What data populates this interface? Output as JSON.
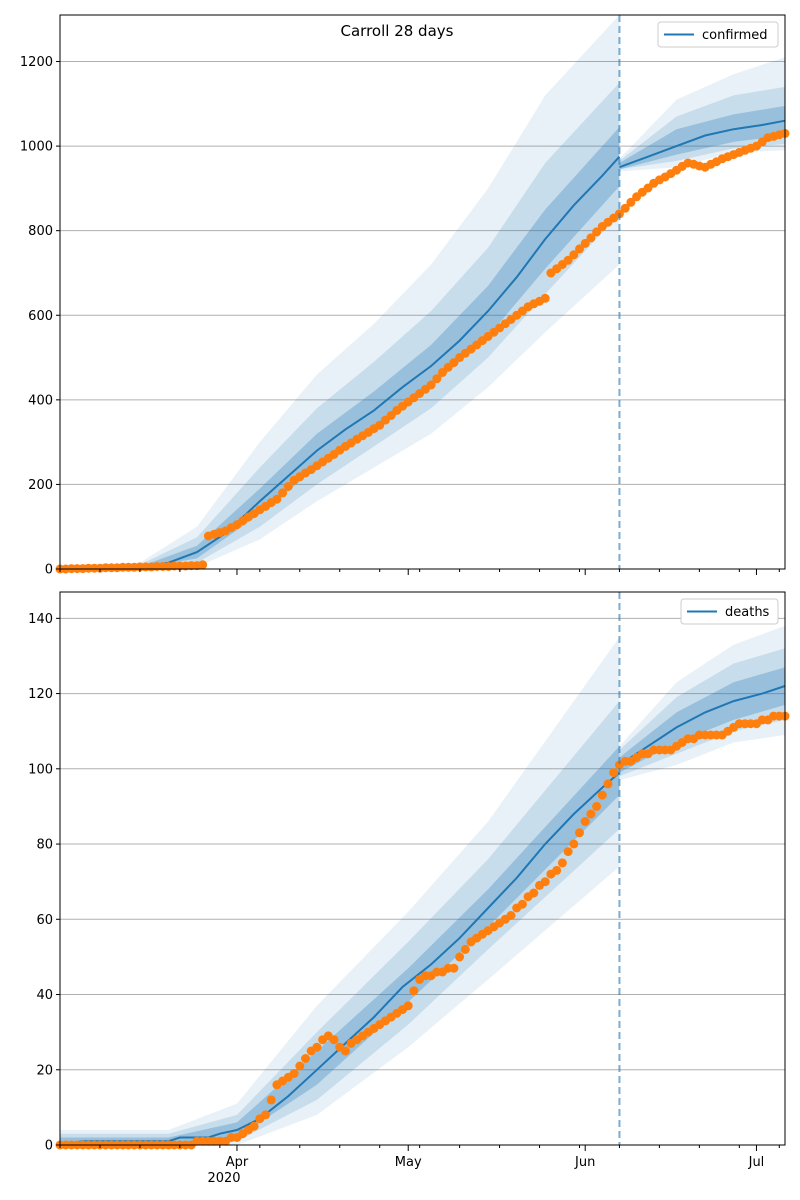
{
  "figure": {
    "title": "Carroll 28 days"
  },
  "colors": {
    "model": "#1f77b4",
    "observed": "#ff7f0e",
    "band": "#1f77b4",
    "grid": "#b0b0b0"
  },
  "chart_data": [
    {
      "type": "line",
      "title": "Carroll 28 days",
      "legend": {
        "label": "confirmed",
        "position": "top-right"
      },
      "x_start": "2020-03-01",
      "x_end": "2020-07-06",
      "forecast_date": "2020-06-07",
      "ylim": [
        0,
        1310
      ],
      "yticks": [
        0,
        200,
        400,
        600,
        800,
        1000,
        1200
      ],
      "grid": "y",
      "model_fit": [
        [
          "2020-03-01",
          0
        ],
        [
          "2020-03-10",
          1
        ],
        [
          "2020-03-15",
          4
        ],
        [
          "2020-03-20",
          15
        ],
        [
          "2020-03-25",
          40
        ],
        [
          "2020-03-30",
          85
        ],
        [
          "2020-04-05",
          160
        ],
        [
          "2020-04-10",
          220
        ],
        [
          "2020-04-15",
          280
        ],
        [
          "2020-04-20",
          330
        ],
        [
          "2020-04-25",
          375
        ],
        [
          "2020-04-30",
          430
        ],
        [
          "2020-05-05",
          480
        ],
        [
          "2020-05-10",
          540
        ],
        [
          "2020-05-15",
          610
        ],
        [
          "2020-05-20",
          690
        ],
        [
          "2020-05-25",
          780
        ],
        [
          "2020-05-30",
          860
        ],
        [
          "2020-06-04",
          930
        ],
        [
          "2020-06-07",
          975
        ]
      ],
      "model_forecast": [
        [
          "2020-06-07",
          950
        ],
        [
          "2020-06-12",
          975
        ],
        [
          "2020-06-17",
          1000
        ],
        [
          "2020-06-22",
          1025
        ],
        [
          "2020-06-27",
          1040
        ],
        [
          "2020-07-02",
          1050
        ],
        [
          "2020-07-06",
          1060
        ]
      ],
      "bands_fit": [
        {
          "x": [
            "2020-03-01",
            "2020-03-15",
            "2020-03-25",
            "2020-04-05",
            "2020-04-15",
            "2020-04-25",
            "2020-05-05",
            "2020-05-15",
            "2020-05-25",
            "2020-06-07"
          ],
          "low": [
            0,
            2,
            25,
            130,
            240,
            330,
            430,
            550,
            710,
            905
          ],
          "high": [
            0,
            6,
            55,
            190,
            320,
            420,
            530,
            670,
            850,
            1045
          ]
        },
        {
          "x": [
            "2020-03-01",
            "2020-03-15",
            "2020-03-25",
            "2020-04-05",
            "2020-04-15",
            "2020-04-25",
            "2020-05-05",
            "2020-05-15",
            "2020-05-25",
            "2020-06-07"
          ],
          "low": [
            0,
            1,
            15,
            100,
            200,
            290,
            380,
            500,
            650,
            840
          ],
          "high": [
            0,
            10,
            75,
            240,
            380,
            490,
            610,
            760,
            960,
            1150
          ]
        },
        {
          "x": [
            "2020-03-01",
            "2020-03-15",
            "2020-03-25",
            "2020-04-05",
            "2020-04-15",
            "2020-04-25",
            "2020-05-05",
            "2020-05-15",
            "2020-05-25",
            "2020-06-07"
          ],
          "low": [
            0,
            0,
            5,
            70,
            160,
            240,
            320,
            430,
            560,
            720
          ],
          "high": [
            0,
            15,
            100,
            300,
            460,
            580,
            720,
            900,
            1120,
            1310
          ]
        }
      ],
      "bands_forecast": [
        {
          "x": [
            "2020-06-07",
            "2020-06-17",
            "2020-06-27",
            "2020-07-06"
          ],
          "low": [
            945,
            980,
            1010,
            1025
          ],
          "high": [
            960,
            1040,
            1075,
            1095
          ]
        },
        {
          "x": [
            "2020-06-07",
            "2020-06-17",
            "2020-06-27",
            "2020-07-06"
          ],
          "low": [
            945,
            965,
            995,
            1005
          ],
          "high": [
            965,
            1070,
            1120,
            1140
          ]
        },
        {
          "x": [
            "2020-06-07",
            "2020-06-17",
            "2020-06-27",
            "2020-07-06"
          ],
          "low": [
            940,
            950,
            985,
            990
          ],
          "high": [
            970,
            1110,
            1170,
            1210
          ]
        }
      ],
      "observed": [
        [
          "2020-03-01",
          0
        ],
        [
          "2020-03-25",
          8
        ],
        [
          "2020-03-26",
          10
        ],
        [
          "2020-03-27",
          78
        ],
        [
          "2020-03-30",
          90
        ],
        [
          "2020-04-01",
          105
        ],
        [
          "2020-04-05",
          140
        ],
        [
          "2020-04-08",
          165
        ],
        [
          "2020-04-11",
          210
        ],
        [
          "2020-04-14",
          235
        ],
        [
          "2020-04-17",
          262
        ],
        [
          "2020-04-20",
          290
        ],
        [
          "2020-04-23",
          315
        ],
        [
          "2020-04-26",
          340
        ],
        [
          "2020-04-29",
          375
        ],
        [
          "2020-05-02",
          405
        ],
        [
          "2020-05-05",
          435
        ],
        [
          "2020-05-07",
          465
        ],
        [
          "2020-05-10",
          500
        ],
        [
          "2020-05-13",
          530
        ],
        [
          "2020-05-16",
          560
        ],
        [
          "2020-05-19",
          590
        ],
        [
          "2020-05-22",
          620
        ],
        [
          "2020-05-25",
          640
        ],
        [
          "2020-05-26",
          700
        ],
        [
          "2020-05-29",
          730
        ],
        [
          "2020-06-01",
          770
        ],
        [
          "2020-06-04",
          810
        ],
        [
          "2020-06-07",
          840
        ],
        [
          "2020-06-10",
          880
        ],
        [
          "2020-06-13",
          912
        ],
        [
          "2020-06-16",
          935
        ],
        [
          "2020-06-19",
          960
        ],
        [
          "2020-06-22",
          950
        ],
        [
          "2020-06-25",
          970
        ],
        [
          "2020-06-28",
          985
        ],
        [
          "2020-07-01",
          1000
        ],
        [
          "2020-07-03",
          1020
        ],
        [
          "2020-07-06",
          1030
        ]
      ]
    },
    {
      "type": "line",
      "legend": {
        "label": "deaths",
        "position": "top-right"
      },
      "x_start": "2020-03-01",
      "x_end": "2020-07-06",
      "forecast_date": "2020-06-07",
      "ylim": [
        0,
        147
      ],
      "yticks": [
        0,
        20,
        40,
        60,
        80,
        100,
        120,
        140
      ],
      "grid": "y",
      "xticks": [
        "Apr",
        "May",
        "Jun",
        "Jul"
      ],
      "xtick_dates": [
        "2020-04-01",
        "2020-05-01",
        "2020-06-01",
        "2020-07-01"
      ],
      "year_label": "2020",
      "model_fit": [
        [
          "2020-03-01",
          0
        ],
        [
          "2020-03-05",
          1
        ],
        [
          "2020-03-20",
          1
        ],
        [
          "2020-03-22",
          2
        ],
        [
          "2020-03-27",
          2
        ],
        [
          "2020-03-29",
          3
        ],
        [
          "2020-04-01",
          4
        ],
        [
          "2020-04-05",
          7
        ],
        [
          "2020-04-10",
          13
        ],
        [
          "2020-04-15",
          20
        ],
        [
          "2020-04-20",
          27
        ],
        [
          "2020-04-25",
          34
        ],
        [
          "2020-04-30",
          42
        ],
        [
          "2020-05-05",
          48
        ],
        [
          "2020-05-10",
          55
        ],
        [
          "2020-05-15",
          63
        ],
        [
          "2020-05-20",
          71
        ],
        [
          "2020-05-25",
          80
        ],
        [
          "2020-05-30",
          88
        ],
        [
          "2020-06-04",
          95
        ],
        [
          "2020-06-07",
          99
        ]
      ],
      "model_forecast": [
        [
          "2020-06-07",
          101
        ],
        [
          "2020-06-12",
          106
        ],
        [
          "2020-06-17",
          111
        ],
        [
          "2020-06-22",
          115
        ],
        [
          "2020-06-27",
          118
        ],
        [
          "2020-07-02",
          120
        ],
        [
          "2020-07-06",
          122
        ]
      ],
      "bands_fit": [
        {
          "x": [
            "2020-03-01",
            "2020-03-20",
            "2020-04-01",
            "2020-04-15",
            "2020-05-01",
            "2020-05-15",
            "2020-06-07"
          ],
          "low": [
            0,
            0,
            2,
            16,
            38,
            58,
            93
          ],
          "high": [
            2,
            2,
            6,
            25,
            47,
            68,
            106
          ]
        },
        {
          "x": [
            "2020-03-01",
            "2020-03-20",
            "2020-04-01",
            "2020-04-15",
            "2020-05-01",
            "2020-05-15",
            "2020-06-07"
          ],
          "low": [
            0,
            0,
            1,
            12,
            32,
            52,
            84
          ],
          "high": [
            3,
            3,
            8,
            30,
            54,
            76,
            118
          ]
        },
        {
          "x": [
            "2020-03-01",
            "2020-03-20",
            "2020-04-01",
            "2020-04-15",
            "2020-05-01",
            "2020-05-15",
            "2020-06-07"
          ],
          "low": [
            0,
            0,
            0,
            8,
            26,
            44,
            74
          ],
          "high": [
            4,
            4,
            11,
            37,
            62,
            86,
            135
          ]
        }
      ],
      "bands_forecast": [
        {
          "x": [
            "2020-06-07",
            "2020-06-17",
            "2020-06-27",
            "2020-07-06"
          ],
          "low": [
            99,
            107,
            113,
            117
          ],
          "high": [
            103,
            115,
            123,
            127
          ]
        },
        {
          "x": [
            "2020-06-07",
            "2020-06-17",
            "2020-06-27",
            "2020-07-06"
          ],
          "low": [
            98,
            104,
            110,
            113
          ],
          "high": [
            105,
            119,
            128,
            132
          ]
        },
        {
          "x": [
            "2020-06-07",
            "2020-06-17",
            "2020-06-27",
            "2020-07-06"
          ],
          "low": [
            97,
            101,
            107,
            109
          ],
          "high": [
            106,
            123,
            133,
            138
          ]
        }
      ],
      "observed": [
        [
          "2020-03-01",
          0
        ],
        [
          "2020-03-20",
          0
        ],
        [
          "2020-03-30",
          1
        ],
        [
          "2020-04-01",
          2
        ],
        [
          "2020-04-03",
          4
        ],
        [
          "2020-04-06",
          8
        ],
        [
          "2020-04-08",
          16
        ],
        [
          "2020-04-11",
          19
        ],
        [
          "2020-04-14",
          25
        ],
        [
          "2020-04-17",
          29
        ],
        [
          "2020-04-20",
          25
        ],
        [
          "2020-04-22",
          28
        ],
        [
          "2020-04-25",
          31
        ],
        [
          "2020-04-28",
          34
        ],
        [
          "2020-05-01",
          37
        ],
        [
          "2020-05-03",
          44
        ],
        [
          "2020-05-06",
          46
        ],
        [
          "2020-05-09",
          47
        ],
        [
          "2020-05-11",
          52
        ],
        [
          "2020-05-13",
          55
        ],
        [
          "2020-05-16",
          58
        ],
        [
          "2020-05-19",
          61
        ],
        [
          "2020-05-22",
          66
        ],
        [
          "2020-05-25",
          70
        ],
        [
          "2020-05-27",
          73
        ],
        [
          "2020-05-30",
          80
        ],
        [
          "2020-06-01",
          86
        ],
        [
          "2020-06-03",
          90
        ],
        [
          "2020-06-05",
          96
        ],
        [
          "2020-06-07",
          101
        ],
        [
          "2020-06-10",
          103
        ],
        [
          "2020-06-13",
          105
        ],
        [
          "2020-06-16",
          105
        ],
        [
          "2020-06-19",
          108
        ],
        [
          "2020-06-22",
          109
        ],
        [
          "2020-06-25",
          109
        ],
        [
          "2020-06-28",
          112
        ],
        [
          "2020-07-01",
          112
        ],
        [
          "2020-07-04",
          114
        ],
        [
          "2020-07-06",
          114
        ]
      ]
    }
  ]
}
